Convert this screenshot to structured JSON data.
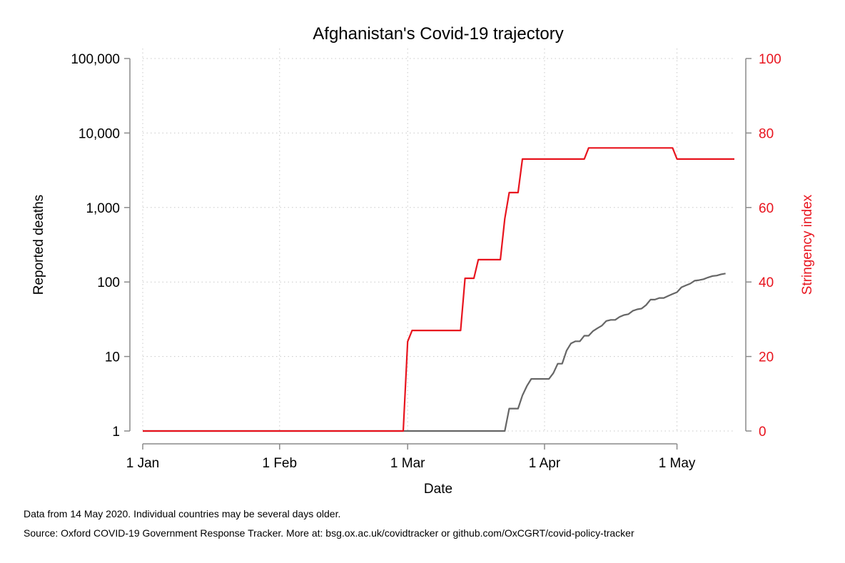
{
  "chart_data": {
    "type": "line",
    "title": "Afghanistan's Covid-19 trajectory",
    "xlabel": "Date",
    "ylabel_left": "Reported deaths",
    "ylabel_right": "Stringency index",
    "x_ticks": [
      {
        "date": "2020-01-01",
        "label": "1 Jan"
      },
      {
        "date": "2020-02-01",
        "label": "1 Feb"
      },
      {
        "date": "2020-03-01",
        "label": "1 Mar"
      },
      {
        "date": "2020-04-01",
        "label": "1 Apr"
      },
      {
        "date": "2020-05-01",
        "label": "1 May"
      }
    ],
    "xlim": [
      "2020-01-01",
      "2020-05-14"
    ],
    "y_left": {
      "scale": "log",
      "lim": [
        1,
        100000
      ],
      "ticks": [
        {
          "value": 1,
          "label": "1"
        },
        {
          "value": 10,
          "label": "10"
        },
        {
          "value": 100,
          "label": "100"
        },
        {
          "value": 1000,
          "label": "1,000"
        },
        {
          "value": 10000,
          "label": "10,000"
        },
        {
          "value": 100000,
          "label": "100,000"
        }
      ]
    },
    "y_right": {
      "scale": "linear",
      "lim": [
        0,
        100
      ],
      "ticks": [
        {
          "value": 0,
          "label": "0"
        },
        {
          "value": 20,
          "label": "20"
        },
        {
          "value": 40,
          "label": "40"
        },
        {
          "value": 60,
          "label": "60"
        },
        {
          "value": 80,
          "label": "80"
        },
        {
          "value": 100,
          "label": "100"
        }
      ]
    },
    "grid": true,
    "series": [
      {
        "axis": "left",
        "color": "#666666",
        "points": [
          [
            "2020-01-01",
            1
          ],
          [
            "2020-03-23",
            1
          ],
          [
            "2020-03-24",
            2
          ],
          [
            "2020-03-26",
            2
          ],
          [
            "2020-03-27",
            3
          ],
          [
            "2020-03-28",
            4
          ],
          [
            "2020-03-29",
            5
          ],
          [
            "2020-04-02",
            5
          ],
          [
            "2020-04-03",
            6
          ],
          [
            "2020-04-04",
            8
          ],
          [
            "2020-04-05",
            8
          ],
          [
            "2020-04-06",
            12
          ],
          [
            "2020-04-07",
            15
          ],
          [
            "2020-04-08",
            16
          ],
          [
            "2020-04-09",
            16
          ],
          [
            "2020-04-10",
            19
          ],
          [
            "2020-04-11",
            19
          ],
          [
            "2020-04-12",
            22
          ],
          [
            "2020-04-13",
            24
          ],
          [
            "2020-04-14",
            26
          ],
          [
            "2020-04-15",
            30
          ],
          [
            "2020-04-16",
            31
          ],
          [
            "2020-04-17",
            31
          ],
          [
            "2020-04-18",
            34
          ],
          [
            "2020-04-19",
            36
          ],
          [
            "2020-04-20",
            37
          ],
          [
            "2020-04-21",
            41
          ],
          [
            "2020-04-22",
            43
          ],
          [
            "2020-04-23",
            44
          ],
          [
            "2020-04-24",
            49
          ],
          [
            "2020-04-25",
            58
          ],
          [
            "2020-04-26",
            58
          ],
          [
            "2020-04-27",
            61
          ],
          [
            "2020-04-28",
            61
          ],
          [
            "2020-04-29",
            65
          ],
          [
            "2020-04-30",
            69
          ],
          [
            "2020-05-01",
            73
          ],
          [
            "2020-05-02",
            85
          ],
          [
            "2020-05-03",
            90
          ],
          [
            "2020-05-04",
            95
          ],
          [
            "2020-05-05",
            104
          ],
          [
            "2020-05-06",
            106
          ],
          [
            "2020-05-07",
            109
          ],
          [
            "2020-05-08",
            115
          ],
          [
            "2020-05-09",
            120
          ],
          [
            "2020-05-10",
            122
          ],
          [
            "2020-05-11",
            127
          ],
          [
            "2020-05-12",
            130
          ]
        ]
      },
      {
        "axis": "right",
        "color": "#e8141e",
        "points": [
          [
            "2020-01-01",
            0
          ],
          [
            "2020-02-29",
            0
          ],
          [
            "2020-03-01",
            24
          ],
          [
            "2020-03-02",
            27
          ],
          [
            "2020-03-13",
            27
          ],
          [
            "2020-03-14",
            41
          ],
          [
            "2020-03-16",
            41
          ],
          [
            "2020-03-17",
            46
          ],
          [
            "2020-03-22",
            46
          ],
          [
            "2020-03-23",
            57
          ],
          [
            "2020-03-24",
            64
          ],
          [
            "2020-03-26",
            64
          ],
          [
            "2020-03-27",
            73
          ],
          [
            "2020-04-10",
            73
          ],
          [
            "2020-04-11",
            76
          ],
          [
            "2020-04-30",
            76
          ],
          [
            "2020-05-01",
            73
          ],
          [
            "2020-05-14",
            73
          ]
        ]
      }
    ]
  },
  "notes": {
    "line1": "Data from 14 May 2020. Individual countries may be several days older.",
    "line2": "Source: Oxford COVID-19 Government Response Tracker. More at: bsg.ox.ac.uk/covidtracker or github.com/OxCGRT/covid-policy-tracker"
  }
}
